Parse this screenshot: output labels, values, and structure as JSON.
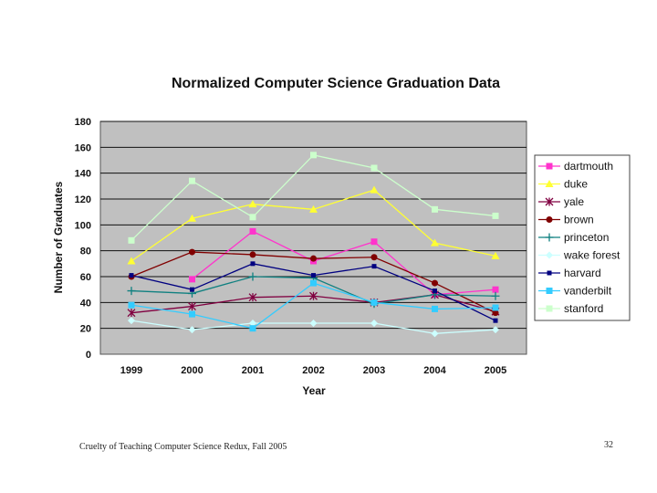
{
  "chart_data": {
    "type": "line",
    "title": "Normalized Computer Science Graduation Data",
    "xlabel": "Year",
    "ylabel": "Number of Graduates",
    "ylim": [
      0,
      180
    ],
    "yticks": [
      0,
      20,
      40,
      60,
      80,
      100,
      120,
      140,
      160,
      180
    ],
    "categories": [
      "1999",
      "2000",
      "2001",
      "2002",
      "2003",
      "2004",
      "2005"
    ],
    "grid": true,
    "legend_position": "right",
    "plot_background": "#c0c0c0",
    "series": [
      {
        "name": "dartmouth",
        "color": "#ff33cc",
        "marker": "square",
        "values": [
          null,
          58,
          95,
          72,
          87,
          46,
          50
        ]
      },
      {
        "name": "duke",
        "color": "#ffff33",
        "marker": "triangle",
        "values": [
          72,
          105,
          116,
          112,
          127,
          86,
          76
        ]
      },
      {
        "name": "yale",
        "color": "#800040",
        "marker": "star",
        "values": [
          32,
          37,
          44,
          45,
          40,
          46,
          33
        ]
      },
      {
        "name": "brown",
        "color": "#800000",
        "marker": "circle",
        "values": [
          60,
          79,
          77,
          74,
          75,
          55,
          32
        ]
      },
      {
        "name": "princeton",
        "color": "#0f8080",
        "marker": "plus",
        "values": [
          49,
          47,
          60,
          59,
          39,
          46,
          45
        ]
      },
      {
        "name": "wake forest",
        "color": "#ccffff",
        "marker": "diamond",
        "values": [
          26,
          19,
          24,
          24,
          24,
          16,
          19
        ]
      },
      {
        "name": "harvard",
        "color": "#000080",
        "marker": "smallsquare",
        "values": [
          61,
          50,
          70,
          61,
          68,
          49,
          26
        ]
      },
      {
        "name": "vanderbilt",
        "color": "#33ccff",
        "marker": "square",
        "values": [
          38,
          31,
          20,
          55,
          40,
          35,
          36
        ]
      },
      {
        "name": "stanford",
        "color": "#ccffcc",
        "marker": "square",
        "values": [
          88,
          134,
          106,
          154,
          144,
          112,
          107
        ]
      }
    ]
  },
  "footer": {
    "left": "Cruelty of Teaching Computer Science Redux, Fall 2005",
    "right": "32"
  }
}
